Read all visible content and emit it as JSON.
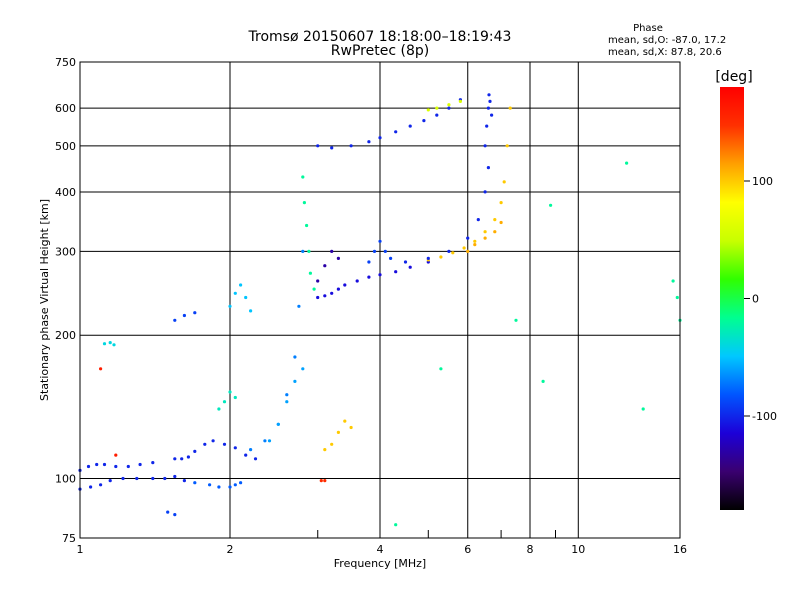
{
  "chart_data": {
    "type": "scatter",
    "title": "Tromsø 20150607 18:18:00–18:19:43",
    "subtitle": "RwPretec (8p)",
    "phase_box": {
      "heading": "Phase",
      "line_o": "mean, sd,O: -87.0, 17.2",
      "line_x": "mean, sd,X:  87.8, 20.6"
    },
    "xlabel": "Frequency [MHz]",
    "ylabel": "Stationary phase Virtual Height [km]",
    "x_scale": "log",
    "y_scale": "log",
    "xlim": [
      1,
      16
    ],
    "ylim": [
      75,
      750
    ],
    "x_ticks": [
      1,
      2,
      4,
      6,
      8,
      10,
      16
    ],
    "x_tick_labels": [
      "1",
      "2",
      "4",
      "6",
      "8",
      "10",
      "16"
    ],
    "y_ticks": [
      75,
      100,
      200,
      300,
      400,
      500,
      600,
      750
    ],
    "y_tick_labels": [
      "75",
      "100",
      "200",
      "300",
      "400",
      "500",
      "600",
      "750"
    ],
    "grid": true,
    "colorbar": {
      "label": "[deg]",
      "range": [
        -180,
        180
      ],
      "ticks": [
        100,
        0,
        -100
      ],
      "tick_labels": [
        "100",
        "0",
        "-100"
      ],
      "colors": [
        "#000000",
        "#3a0070",
        "#1c00d8",
        "#0055ff",
        "#00c8ff",
        "#00ff90",
        "#30ff00",
        "#c8ff00",
        "#ffff00",
        "#ffa000",
        "#ff3000",
        "#ff0000"
      ]
    },
    "series": [
      {
        "x": [
          1.0,
          1.04,
          1.08,
          1.12,
          1.18,
          1.25,
          1.32,
          1.4
        ],
        "y": [
          104,
          106,
          107,
          107,
          106,
          106,
          107,
          108
        ],
        "phase": -100
      },
      {
        "x": [
          1.0,
          1.05,
          1.1,
          1.15,
          1.22,
          1.3,
          1.4,
          1.48,
          1.55,
          1.62
        ],
        "y": [
          95,
          96,
          97,
          99,
          100,
          100,
          100,
          100,
          101,
          99
        ],
        "phase": -100
      },
      {
        "x": [
          1.55,
          1.6,
          1.65,
          1.7,
          1.78,
          1.85,
          1.95,
          2.05,
          2.15,
          2.25
        ],
        "y": [
          110,
          110,
          111,
          114,
          118,
          120,
          118,
          116,
          112,
          110
        ],
        "phase": -100
      },
      {
        "x": [
          1.7,
          1.82,
          1.9,
          2.0,
          2.05,
          2.1
        ],
        "y": [
          98,
          97,
          96,
          96,
          97,
          98
        ],
        "phase": -80
      },
      {
        "x": [
          1.9,
          1.95,
          2.0,
          2.05
        ],
        "y": [
          140,
          145,
          152,
          148
        ],
        "phase": -30
      },
      {
        "x": [
          1.55,
          1.62,
          1.7
        ],
        "y": [
          215,
          220,
          223
        ],
        "phase": -90
      },
      {
        "x": [
          2.0,
          2.05,
          2.1,
          2.15,
          2.2
        ],
        "y": [
          230,
          245,
          255,
          240,
          225
        ],
        "phase": -50
      },
      {
        "x": [
          1.12,
          1.15,
          1.17
        ],
        "y": [
          192,
          193,
          191
        ],
        "phase": -40
      },
      {
        "x": [
          2.2,
          2.35,
          2.5,
          2.6,
          2.7,
          2.75,
          2.8
        ],
        "y": [
          115,
          120,
          130,
          150,
          180,
          230,
          300
        ],
        "phase": -70
      },
      {
        "x": [
          2.8,
          2.82,
          2.85,
          2.88,
          2.9,
          2.95
        ],
        "y": [
          430,
          380,
          340,
          300,
          270,
          250
        ],
        "phase": -20
      },
      {
        "x": [
          2.4,
          2.5,
          2.6,
          2.7,
          2.8
        ],
        "y": [
          120,
          130,
          145,
          160,
          170
        ],
        "phase": -60
      },
      {
        "x": [
          3.0,
          3.1,
          3.2,
          3.3,
          3.4,
          3.6,
          3.8,
          4.0,
          4.3,
          4.6,
          5.0
        ],
        "y": [
          240,
          242,
          245,
          250,
          255,
          260,
          265,
          268,
          272,
          278,
          285
        ],
        "phase": -110
      },
      {
        "x": [
          3.0,
          3.1,
          3.2,
          3.3
        ],
        "y": [
          260,
          280,
          300,
          290
        ],
        "phase": -130
      },
      {
        "x": [
          3.8,
          3.9,
          4.0,
          4.1,
          4.2
        ],
        "y": [
          285,
          300,
          315,
          300,
          290
        ],
        "phase": -90
      },
      {
        "x": [
          5.0,
          5.3,
          5.6,
          5.9,
          6.2,
          6.5,
          6.8,
          7.0,
          7.1,
          7.2,
          7.3
        ],
        "y": [
          288,
          292,
          298,
          305,
          315,
          330,
          350,
          380,
          420,
          500,
          600
        ],
        "phase": 100
      },
      {
        "x": [
          4.5,
          5.0,
          5.5,
          6.0,
          6.3,
          6.5,
          6.6
        ],
        "y": [
          285,
          290,
          300,
          320,
          350,
          400,
          450
        ],
        "phase": -100
      },
      {
        "x": [
          6.5,
          6.55,
          6.6,
          6.62,
          6.65,
          6.7
        ],
        "y": [
          500,
          550,
          600,
          640,
          620,
          580
        ],
        "phase": -100
      },
      {
        "x": [
          3.0,
          3.2,
          3.5,
          3.8,
          4.0,
          4.3,
          4.6,
          4.9,
          5.2,
          5.5,
          5.8
        ],
        "y": [
          500,
          495,
          500,
          510,
          520,
          535,
          550,
          565,
          580,
          600,
          625
        ],
        "phase": -100
      },
      {
        "x": [
          5.0,
          5.2,
          5.5,
          5.8
        ],
        "y": [
          595,
          600,
          610,
          620
        ],
        "phase": 60
      },
      {
        "x": [
          3.1,
          3.2,
          3.3,
          3.4,
          3.5
        ],
        "y": [
          115,
          118,
          125,
          132,
          128
        ],
        "phase": 100
      },
      {
        "x": [
          6.0,
          6.2,
          6.5,
          6.8,
          7.0
        ],
        "y": [
          300,
          310,
          320,
          330,
          345
        ],
        "phase": 110
      },
      {
        "x": [
          3.05,
          3.1
        ],
        "y": [
          99,
          99
        ],
        "phase": 150
      },
      {
        "x": [
          1.1,
          1.18
        ],
        "y": [
          170,
          112
        ],
        "phase": 160
      },
      {
        "x": [
          12.5,
          13.5,
          15.5,
          15.8,
          16.0,
          8.5,
          8.8,
          7.5,
          5.3,
          4.3
        ],
        "y": [
          460,
          140,
          260,
          240,
          215,
          160,
          375,
          215,
          170,
          80
        ],
        "phase": -20
      },
      {
        "x": [
          1.5,
          1.55
        ],
        "y": [
          85,
          84
        ],
        "phase": -90
      }
    ]
  }
}
